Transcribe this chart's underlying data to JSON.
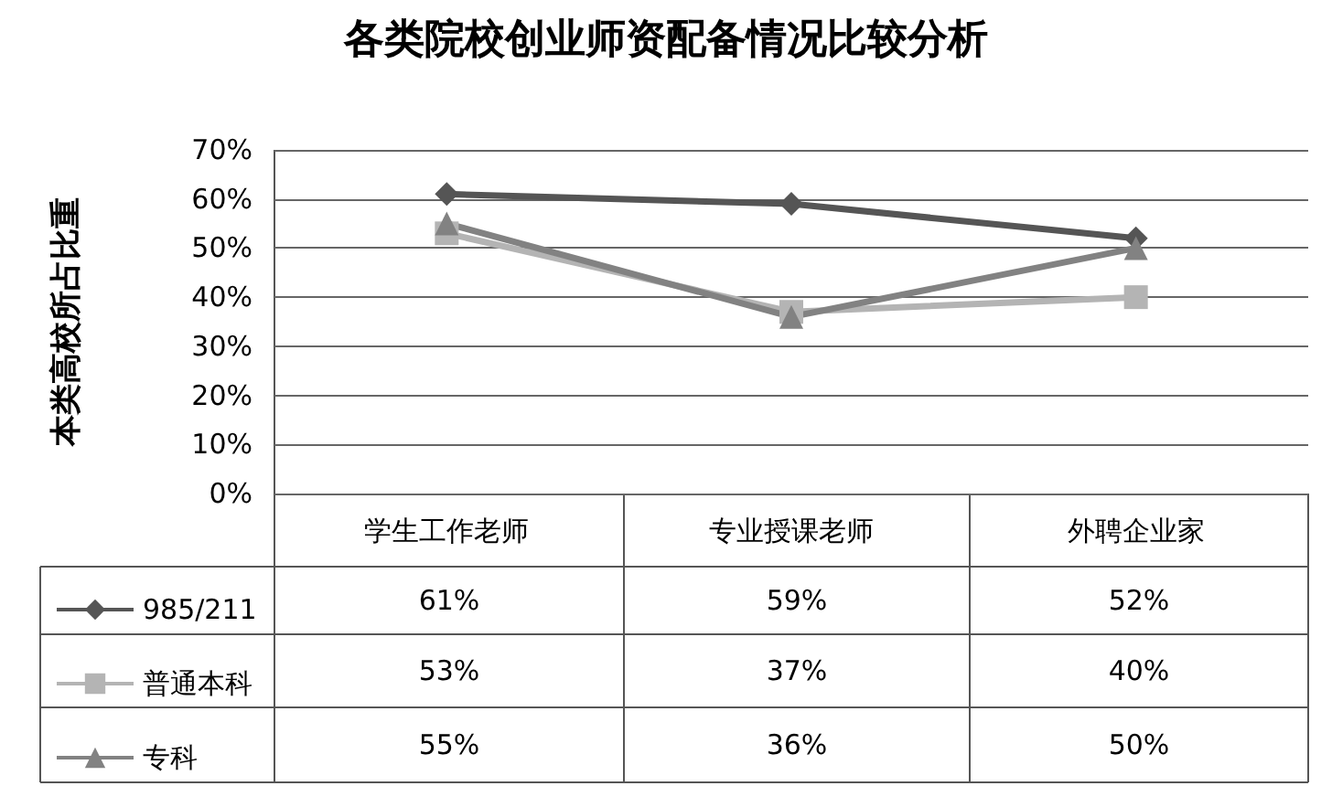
{
  "chart_data": {
    "type": "line",
    "title": "各类院校创业师资配备情况比较分析",
    "ylabel": "本类高校所占比重",
    "categories": [
      "学生工作老师",
      "专业授课老师",
      "外聘企业家"
    ],
    "series": [
      {
        "name": "985/211",
        "color": "#555555",
        "marker": "diamond",
        "values": [
          61,
          59,
          52
        ],
        "value_labels": [
          "61%",
          "59%",
          "52%"
        ]
      },
      {
        "name": "普通本科",
        "color": "#b4b4b4",
        "marker": "square",
        "values": [
          53,
          37,
          40
        ],
        "value_labels": [
          "53%",
          "37%",
          "40%"
        ]
      },
      {
        "name": "专科",
        "color": "#828282",
        "marker": "triangle",
        "values": [
          55,
          36,
          50
        ],
        "value_labels": [
          "55%",
          "36%",
          "50%"
        ]
      }
    ],
    "ylim": [
      0,
      70
    ],
    "yticks": [
      {
        "value": 0,
        "label": "0%"
      },
      {
        "value": 10,
        "label": "10%"
      },
      {
        "value": 20,
        "label": "20%"
      },
      {
        "value": 30,
        "label": "30%"
      },
      {
        "value": 40,
        "label": "40%"
      },
      {
        "value": 50,
        "label": "50%"
      },
      {
        "value": 60,
        "label": "60%"
      },
      {
        "value": 70,
        "label": "70%"
      }
    ],
    "grid": "y",
    "legend": "bottom left"
  }
}
